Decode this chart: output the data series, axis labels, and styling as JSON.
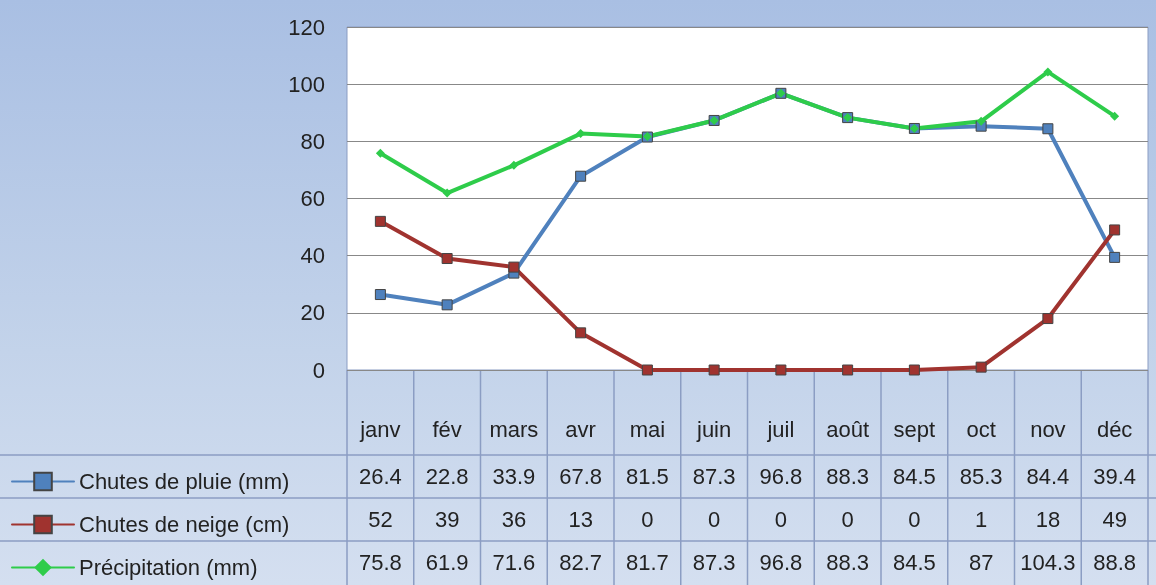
{
  "chart_data": {
    "type": "line",
    "categories": [
      "janv",
      "fév",
      "mars",
      "avr",
      "mai",
      "juin",
      "juil",
      "août",
      "sept",
      "oct",
      "nov",
      "déc"
    ],
    "series": [
      {
        "name": "Chutes de pluie (mm)",
        "color": "#4f81bd",
        "marker": "square",
        "values": [
          26.4,
          22.8,
          33.9,
          67.8,
          81.5,
          87.3,
          96.8,
          88.3,
          84.5,
          85.3,
          84.4,
          39.4
        ]
      },
      {
        "name": "Chutes de neige (cm)",
        "color": "#a0332f",
        "marker": "square",
        "values": [
          52,
          39,
          36,
          13,
          0,
          0,
          0,
          0,
          0,
          1,
          18,
          49
        ]
      },
      {
        "name": "Précipitation (mm)",
        "color": "#2ecc4a",
        "marker": "diamond",
        "values": [
          75.8,
          61.9,
          71.6,
          82.7,
          81.7,
          87.3,
          96.8,
          88.3,
          84.5,
          87,
          104.3,
          88.8
        ]
      }
    ],
    "ylim": [
      0,
      120
    ],
    "yticks": [
      0,
      20,
      40,
      60,
      80,
      100,
      120
    ],
    "grid": "y",
    "legend": "bottom left",
    "data_labels": true,
    "line_style": "solid"
  }
}
